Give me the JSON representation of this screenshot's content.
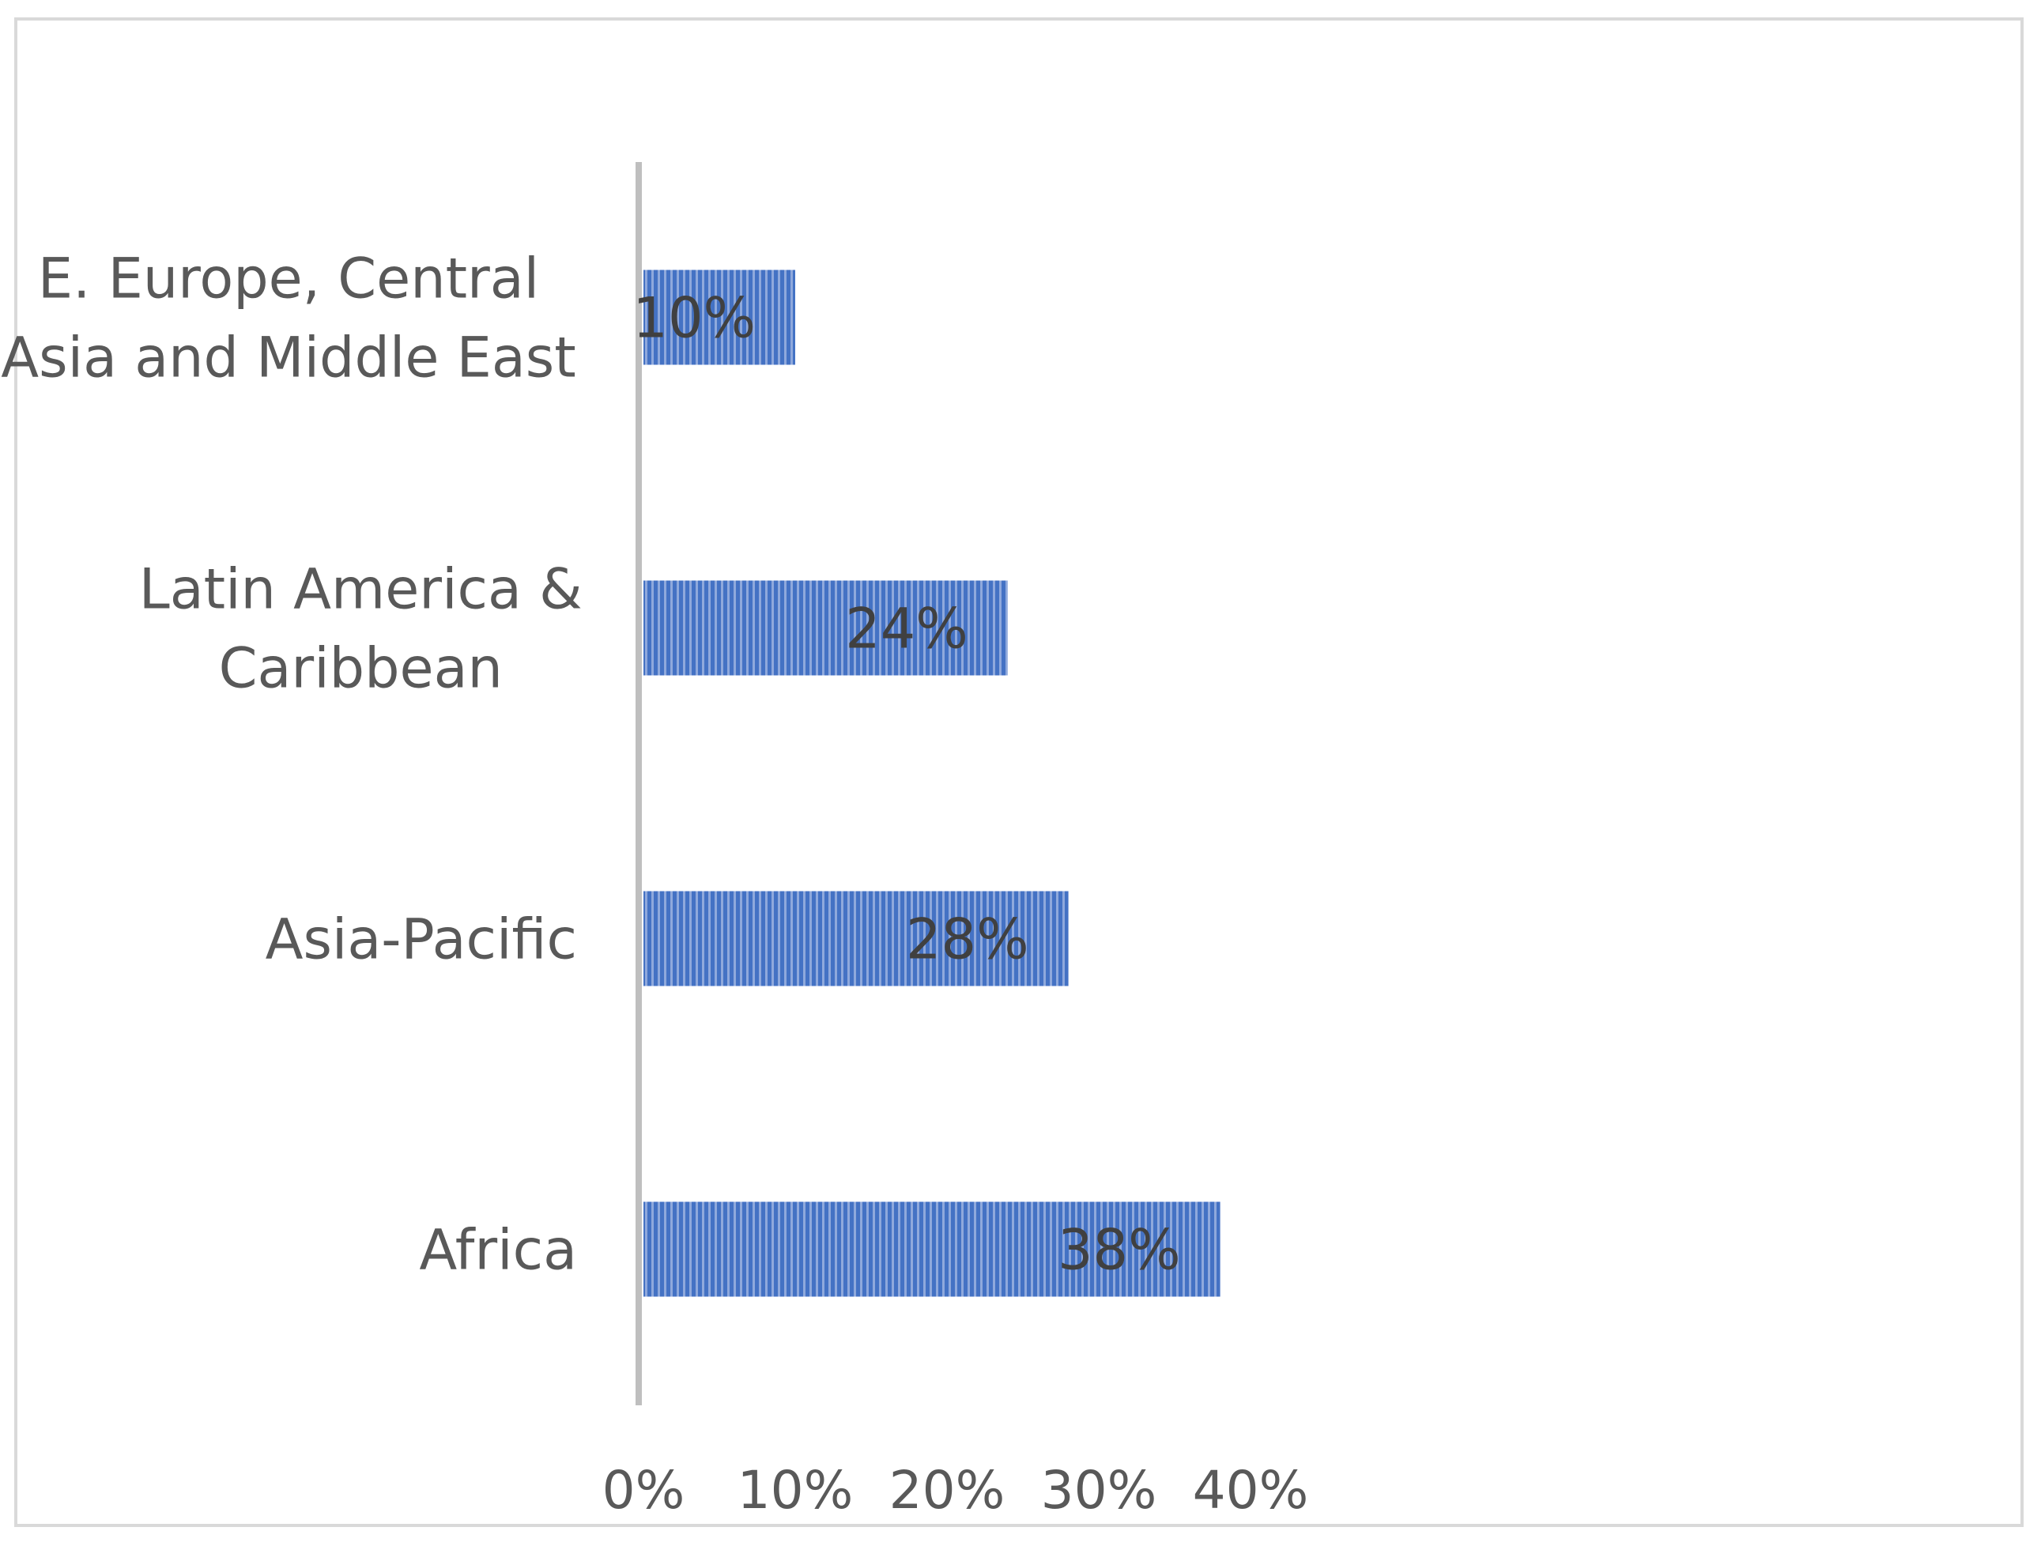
{
  "chart_data": {
    "type": "bar",
    "orientation": "horizontal",
    "categories": [
      "E. Europe, Central Asia and Middle East",
      "Latin America & Caribbean",
      "Asia-Pacific",
      "Africa"
    ],
    "category_label_lines": [
      [
        "E. Europe, Central",
        "Asia and Middle East"
      ],
      [
        "Latin America &",
        "Caribbean"
      ],
      [
        "Asia-Pacific"
      ],
      [
        "Africa"
      ]
    ],
    "values": [
      10,
      24,
      28,
      38
    ],
    "data_labels": [
      "10%",
      "24%",
      "28%",
      "38%"
    ],
    "xlim": [
      0,
      40
    ],
    "x_ticks": [
      0,
      10,
      20,
      30,
      40
    ],
    "x_tick_labels": [
      "0%",
      "10%",
      "20%",
      "30%",
      "40%"
    ],
    "title": "",
    "xlabel": "",
    "ylabel": "",
    "grid": false,
    "legend": "none",
    "bar_pattern": "vertical-stripes",
    "colors": {
      "bar_fill": "#4472c4",
      "bar_stripe": "#8fa9dc",
      "axis": "#bfbfbf",
      "text": "#595959",
      "data_label": "#404040",
      "frame": "#d9d9d9"
    }
  }
}
